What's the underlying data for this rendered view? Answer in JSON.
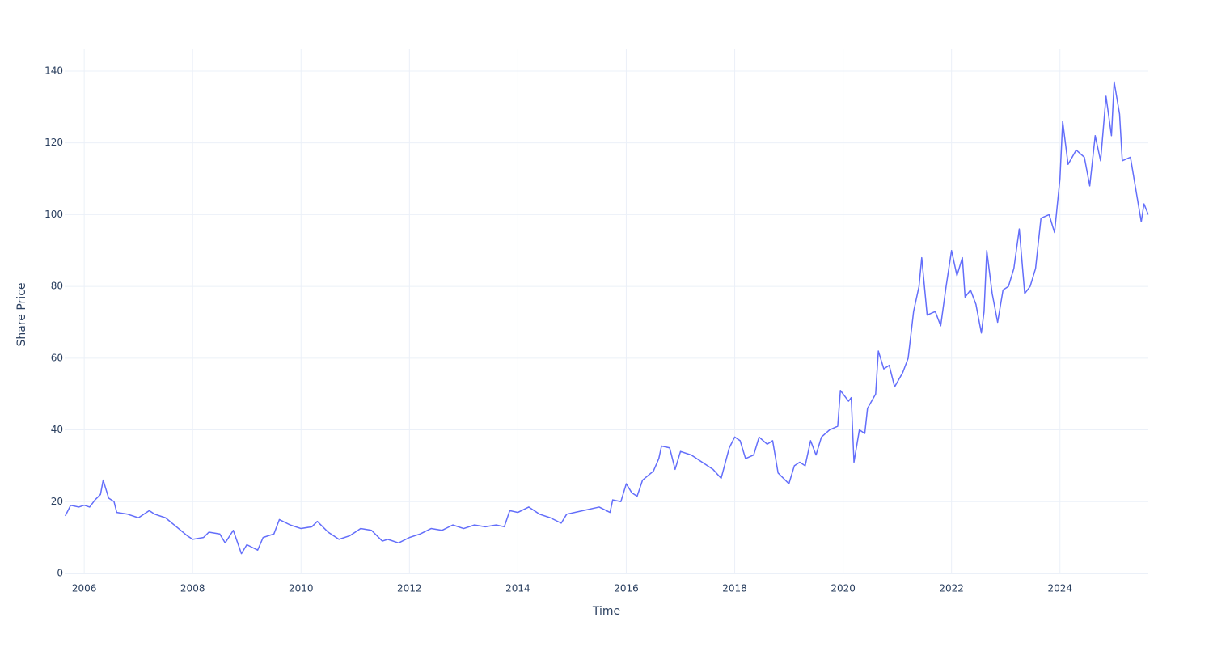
{
  "chart_data": {
    "type": "line",
    "x_label": "Time",
    "y_label": "Share Price",
    "x": [
      2005.65,
      2005.75,
      2005.9,
      2006.0,
      2006.1,
      2006.2,
      2006.3,
      2006.35,
      2006.45,
      2006.55,
      2006.6,
      2006.8,
      2007.0,
      2007.2,
      2007.3,
      2007.5,
      2007.7,
      2007.9,
      2008.0,
      2008.2,
      2008.3,
      2008.5,
      2008.6,
      2008.75,
      2008.9,
      2009.0,
      2009.2,
      2009.3,
      2009.5,
      2009.6,
      2009.8,
      2010.0,
      2010.2,
      2010.3,
      2010.5,
      2010.7,
      2010.9,
      2011.0,
      2011.1,
      2011.3,
      2011.5,
      2011.6,
      2011.8,
      2012.0,
      2012.2,
      2012.4,
      2012.6,
      2012.8,
      2013.0,
      2013.2,
      2013.4,
      2013.6,
      2013.75,
      2013.85,
      2014.0,
      2014.2,
      2014.4,
      2014.6,
      2014.8,
      2014.9,
      2015.2,
      2015.5,
      2015.7,
      2015.75,
      2015.9,
      2016.0,
      2016.1,
      2016.2,
      2016.3,
      2016.5,
      2016.6,
      2016.65,
      2016.8,
      2016.9,
      2017.0,
      2017.2,
      2017.4,
      2017.6,
      2017.75,
      2017.9,
      2018.0,
      2018.1,
      2018.2,
      2018.35,
      2018.45,
      2018.6,
      2018.7,
      2018.8,
      2019.0,
      2019.1,
      2019.2,
      2019.3,
      2019.4,
      2019.5,
      2019.6,
      2019.75,
      2019.9,
      2019.95,
      2020.1,
      2020.15,
      2020.2,
      2020.3,
      2020.4,
      2020.45,
      2020.6,
      2020.65,
      2020.75,
      2020.85,
      2020.95,
      2021.1,
      2021.2,
      2021.3,
      2021.4,
      2021.45,
      2021.55,
      2021.7,
      2021.8,
      2021.9,
      2022.0,
      2022.1,
      2022.2,
      2022.25,
      2022.35,
      2022.45,
      2022.55,
      2022.6,
      2022.65,
      2022.75,
      2022.85,
      2022.95,
      2023.05,
      2023.15,
      2023.25,
      2023.35,
      2023.45,
      2023.55,
      2023.65,
      2023.8,
      2023.9,
      2024.0,
      2024.05,
      2024.15,
      2024.3,
      2024.45,
      2024.55,
      2024.65,
      2024.75,
      2024.85,
      2024.95,
      2025.0,
      2025.1,
      2025.15,
      2025.3,
      2025.4,
      2025.5,
      2025.55,
      2025.63
    ],
    "series": [
      {
        "name": "Share Price",
        "color": "#636efa",
        "values": [
          16,
          19,
          18.5,
          19,
          18.5,
          20.5,
          22,
          26,
          21,
          20,
          17,
          16.5,
          15.5,
          17.5,
          16.5,
          15.5,
          13,
          10.5,
          9.5,
          10,
          11.5,
          11,
          8.5,
          12,
          5.5,
          8,
          6.5,
          10,
          11,
          15,
          13.5,
          12.5,
          13,
          14.5,
          11.5,
          9.5,
          10.5,
          11.5,
          12.5,
          12,
          9,
          9.5,
          8.5,
          10,
          11,
          12.5,
          12,
          13.5,
          12.5,
          13.5,
          13,
          13.5,
          13,
          17.5,
          17,
          18.5,
          16.5,
          15.5,
          14,
          16.5,
          17.5,
          18.5,
          17,
          20.5,
          20,
          25,
          22.5,
          21.5,
          26,
          28.5,
          32,
          35.5,
          35,
          29,
          34,
          33,
          31,
          29,
          26.5,
          35,
          38,
          37,
          32,
          33,
          38,
          36,
          37,
          28,
          25,
          30,
          31,
          30,
          37,
          33,
          38,
          40,
          41,
          51,
          48,
          49,
          31,
          40,
          39,
          46,
          50,
          62,
          57,
          58,
          52,
          56,
          60,
          73,
          80,
          88,
          72,
          73,
          69,
          80,
          90,
          83,
          88,
          77,
          79,
          75,
          67,
          73,
          90,
          78,
          70,
          79,
          80,
          85,
          96,
          78,
          80,
          85,
          99,
          100,
          95,
          110,
          126,
          114,
          118,
          116,
          108,
          122,
          115,
          133,
          122,
          137,
          128,
          115,
          116,
          107,
          98,
          103,
          100
        ]
      }
    ],
    "xlim": [
      2005.64,
      2025.63
    ],
    "ylim": [
      0,
      146.3
    ],
    "xticks": [
      2006,
      2008,
      2010,
      2012,
      2014,
      2016,
      2018,
      2020,
      2022,
      2024
    ],
    "yticks": [
      0,
      20,
      40,
      60,
      80,
      100,
      120,
      140
    ],
    "grid": true
  }
}
